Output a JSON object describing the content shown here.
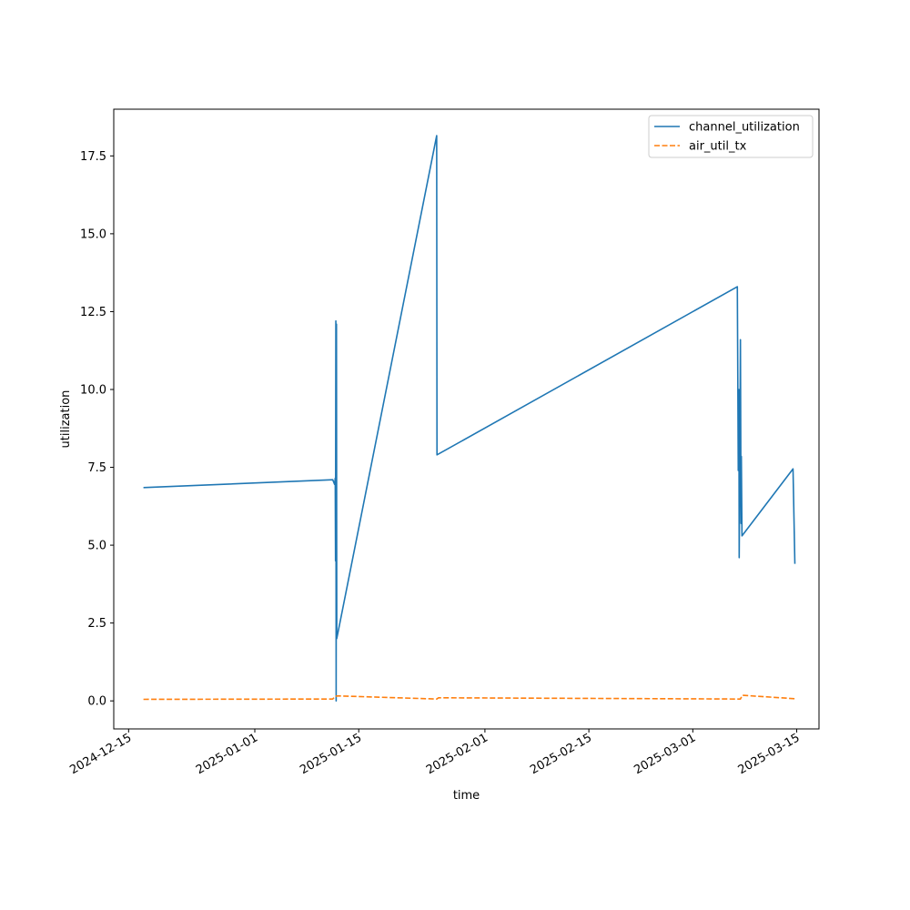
{
  "chart_data": {
    "type": "line",
    "title": "",
    "xlabel": "time",
    "ylabel": "utilization",
    "x_is_date": true,
    "xlim": [
      "2024-12-13",
      "2025-03-18"
    ],
    "ylim": [
      -0.9,
      19.0
    ],
    "x_ticks": [
      {
        "date": "2024-12-15",
        "label": "2024-12-15"
      },
      {
        "date": "2025-01-01",
        "label": "2025-01-01"
      },
      {
        "date": "2025-01-15",
        "label": "2025-01-15"
      },
      {
        "date": "2025-02-01",
        "label": "2025-02-01"
      },
      {
        "date": "2025-02-15",
        "label": "2025-02-15"
      },
      {
        "date": "2025-03-01",
        "label": "2025-03-01"
      },
      {
        "date": "2025-03-15",
        "label": "2025-03-15"
      }
    ],
    "y_ticks": [
      {
        "value": 0.0,
        "label": "0.0"
      },
      {
        "value": 2.5,
        "label": "2.5"
      },
      {
        "value": 5.0,
        "label": "5.0"
      },
      {
        "value": 7.5,
        "label": "7.5"
      },
      {
        "value": 10.0,
        "label": "10.0"
      },
      {
        "value": 12.5,
        "label": "12.5"
      },
      {
        "value": 15.0,
        "label": "15.0"
      },
      {
        "value": 17.5,
        "label": "17.5"
      }
    ],
    "grid": false,
    "legend_position": "top-right",
    "series": [
      {
        "name": "channel_utilization",
        "color": "#1f77b4",
        "dash": "solid",
        "points": [
          [
            "2024-12-17T00:00",
            6.85
          ],
          [
            "2025-01-11T12:00",
            7.1
          ],
          [
            "2025-01-11T18:00",
            6.95
          ],
          [
            "2025-01-11T20:00",
            7.15
          ],
          [
            "2025-01-11T21:00",
            4.5
          ],
          [
            "2025-01-11T22:00",
            12.2
          ],
          [
            "2025-01-11T23:00",
            0.0
          ],
          [
            "2025-01-12T00:00",
            12.1
          ],
          [
            "2025-01-12T01:00",
            2.0
          ],
          [
            "2025-01-25T12:00",
            18.15
          ],
          [
            "2025-01-25T13:00",
            7.9
          ],
          [
            "2025-03-07T00:00",
            13.3
          ],
          [
            "2025-03-07T03:00",
            7.4
          ],
          [
            "2025-03-07T05:00",
            10.0
          ],
          [
            "2025-03-07T06:00",
            4.6
          ],
          [
            "2025-03-07T08:00",
            7.6
          ],
          [
            "2025-03-07T10:00",
            11.6
          ],
          [
            "2025-03-07T12:00",
            5.7
          ],
          [
            "2025-03-07T13:00",
            7.85
          ],
          [
            "2025-03-07T15:00",
            5.3
          ],
          [
            "2025-03-14T12:00",
            7.45
          ],
          [
            "2025-03-14T18:00",
            4.4
          ]
        ]
      },
      {
        "name": "air_util_tx",
        "color": "#ff7f0e",
        "dash": "dashed",
        "points": [
          [
            "2024-12-17T00:00",
            0.05
          ],
          [
            "2025-01-11T12:00",
            0.06
          ],
          [
            "2025-01-11T20:00",
            0.15
          ],
          [
            "2025-01-12T06:00",
            0.16
          ],
          [
            "2025-01-25T12:00",
            0.06
          ],
          [
            "2025-01-25T18:00",
            0.1
          ],
          [
            "2025-03-07T00:00",
            0.06
          ],
          [
            "2025-03-07T10:00",
            0.06
          ],
          [
            "2025-03-07T16:00",
            0.18
          ],
          [
            "2025-03-14T18:00",
            0.07
          ]
        ]
      }
    ]
  }
}
